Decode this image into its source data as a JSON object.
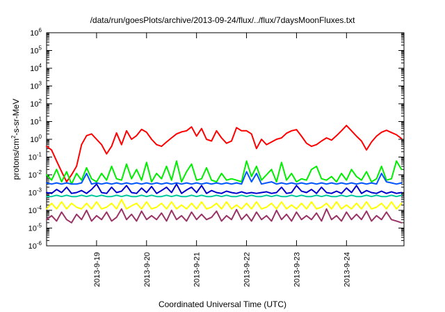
{
  "chart_data": {
    "type": "line",
    "title": "/data/run/goesPlots/archive/2013-09-24/flux/../flux/7daysMoonFluxes.txt",
    "xlabel": "Coordinated Universal Time (UTC)",
    "ylabel": "protons/cm2-s-sr-MeV",
    "ylabel_parts": {
      "pre": "protons/cm",
      "sup": "2",
      "post": "-s-sr-MeV"
    },
    "yscale": "log",
    "ylim": [
      1e-06,
      1000000.0
    ],
    "y_ticks": [
      {
        "exp": "-6"
      },
      {
        "exp": "-5"
      },
      {
        "exp": "-4"
      },
      {
        "exp": "-3"
      },
      {
        "exp": "-2"
      },
      {
        "exp": "-1"
      },
      {
        "exp": "0"
      },
      {
        "exp": "1"
      },
      {
        "exp": "2"
      },
      {
        "exp": "3"
      },
      {
        "exp": "4"
      },
      {
        "exp": "5"
      },
      {
        "exp": "6"
      }
    ],
    "y_tick_base": "10",
    "xlim_days": [
      0,
      7.15
    ],
    "x_ticks": [
      {
        "label": "2013-9-19",
        "day": 1.0
      },
      {
        "label": "2013-9-20",
        "day": 2.0
      },
      {
        "label": "2013-9-21",
        "day": 3.0
      },
      {
        "label": "2013-9-22",
        "day": 4.0
      },
      {
        "label": "2013-9-23",
        "day": 5.0
      },
      {
        "label": "2013-9-24",
        "day": 6.0
      }
    ],
    "grid": false,
    "legend": "none",
    "series": [
      {
        "color": "#ff0000",
        "x": [
          0,
          0.1,
          0.2,
          0.3,
          0.4,
          0.5,
          0.6,
          0.7,
          0.8,
          0.9,
          1,
          1.1,
          1.2,
          1.3,
          1.4,
          1.5,
          1.6,
          1.7,
          1.8,
          1.9,
          2,
          2.1,
          2.2,
          2.3,
          2.4,
          2.5,
          2.6,
          2.7,
          2.8,
          2.9,
          3,
          3.1,
          3.2,
          3.3,
          3.4,
          3.5,
          3.6,
          3.7,
          3.8,
          3.9,
          4,
          4.1,
          4.2,
          4.3,
          4.4,
          4.5,
          4.6,
          4.7,
          4.8,
          4.9,
          5,
          5.1,
          5.2,
          5.3,
          5.4,
          5.5,
          5.6,
          5.7,
          5.8,
          5.9,
          6,
          6.1,
          6.2,
          6.3,
          6.4,
          6.5,
          6.6,
          6.7,
          6.8,
          6.9,
          7,
          7.1
        ],
        "values": [
          0.4,
          0.25,
          0.06,
          0.015,
          0.004,
          0.01,
          0.03,
          0.5,
          1.6,
          2,
          1,
          0.5,
          0.15,
          0.4,
          2.3,
          0.5,
          3,
          1,
          1.6,
          3.6,
          2.5,
          1,
          0.5,
          0.4,
          0.7,
          1.2,
          2,
          2.6,
          3,
          5,
          1.5,
          4,
          1,
          0.8,
          3,
          1.2,
          0.6,
          0.8,
          4.5,
          3,
          3,
          2,
          0.3,
          1,
          0.5,
          0.7,
          1,
          1.2,
          2.2,
          3,
          3.5,
          1.5,
          0.6,
          0.4,
          0.5,
          0.8,
          1.2,
          0.9,
          1.6,
          3,
          6,
          3,
          1.5,
          0.8,
          0.25,
          0.7,
          1.5,
          2.5,
          3.2,
          2.4,
          1.8,
          1.1
        ]
      },
      {
        "color": "#00ee00",
        "x": [
          0,
          0.1,
          0.2,
          0.3,
          0.4,
          0.5,
          0.6,
          0.7,
          0.8,
          0.9,
          1,
          1.1,
          1.2,
          1.3,
          1.4,
          1.5,
          1.6,
          1.7,
          1.8,
          1.9,
          2,
          2.1,
          2.2,
          2.3,
          2.4,
          2.5,
          2.6,
          2.7,
          2.8,
          2.9,
          3,
          3.1,
          3.2,
          3.3,
          3.4,
          3.5,
          3.6,
          3.7,
          3.8,
          3.9,
          4,
          4.1,
          4.2,
          4.3,
          4.4,
          4.5,
          4.6,
          4.7,
          4.8,
          4.9,
          5,
          5.1,
          5.2,
          5.3,
          5.4,
          5.5,
          5.6,
          5.7,
          5.8,
          5.9,
          6,
          6.1,
          6.2,
          6.3,
          6.4,
          6.5,
          6.6,
          6.7,
          6.8,
          6.9,
          7,
          7.1
        ],
        "values": [
          0.01,
          0.005,
          0.02,
          0.004,
          0.015,
          0.003,
          0.012,
          0.005,
          0.025,
          0.006,
          0.004,
          0.012,
          0.005,
          0.03,
          0.006,
          0.005,
          0.04,
          0.006,
          0.02,
          0.005,
          0.05,
          0.004,
          0.012,
          0.006,
          0.03,
          0.005,
          0.06,
          0.004,
          0.015,
          0.04,
          0.005,
          0.006,
          0.025,
          0.005,
          0.004,
          0.012,
          0.005,
          0.006,
          0.005,
          0.004,
          0.06,
          0.008,
          0.03,
          0.005,
          0.01,
          0.02,
          0.004,
          0.05,
          0.005,
          0.012,
          0.004,
          0.006,
          0.005,
          0.02,
          0.03,
          0.006,
          0.005,
          0.008,
          0.004,
          0.012,
          0.005,
          0.02,
          0.008,
          0.005,
          0.015,
          0.004,
          0.006,
          0.03,
          0.005,
          0.006,
          0.06,
          0.02
        ]
      },
      {
        "color": "#0055ff",
        "x": [
          0,
          0.1,
          0.2,
          0.3,
          0.4,
          0.5,
          0.6,
          0.7,
          0.8,
          0.9,
          1,
          1.1,
          1.2,
          1.3,
          1.4,
          1.5,
          1.6,
          1.7,
          1.8,
          1.9,
          2,
          2.1,
          2.2,
          2.3,
          2.4,
          2.5,
          2.6,
          2.7,
          2.8,
          2.9,
          3,
          3.1,
          3.2,
          3.3,
          3.4,
          3.5,
          3.6,
          3.7,
          3.8,
          3.9,
          4,
          4.1,
          4.2,
          4.3,
          4.4,
          4.5,
          4.6,
          4.7,
          4.8,
          4.9,
          5,
          5.1,
          5.2,
          5.3,
          5.4,
          5.5,
          5.6,
          5.7,
          5.8,
          5.9,
          6,
          6.1,
          6.2,
          6.3,
          6.4,
          6.5,
          6.6,
          6.7,
          6.8,
          6.9,
          7,
          7.1
        ],
        "values": [
          0.0035,
          0.003,
          0.0035,
          0.003,
          0.0035,
          0.003,
          0.003,
          0.0035,
          0.012,
          0.003,
          0.0035,
          0.003,
          0.0035,
          0.003,
          0.0035,
          0.003,
          0.0035,
          0.003,
          0.0035,
          0.003,
          0.0035,
          0.003,
          0.0035,
          0.003,
          0.0035,
          0.003,
          0.0035,
          0.003,
          0.0035,
          0.003,
          0.0035,
          0.003,
          0.0035,
          0.003,
          0.0035,
          0.003,
          0.0035,
          0.003,
          0.0035,
          0.003,
          0.015,
          0.004,
          0.012,
          0.003,
          0.0035,
          0.004,
          0.003,
          0.0035,
          0.003,
          0.0035,
          0.003,
          0.0035,
          0.003,
          0.0035,
          0.003,
          0.0035,
          0.003,
          0.0035,
          0.003,
          0.0035,
          0.003,
          0.0035,
          0.003,
          0.0035,
          0.003,
          0.0035,
          0.003,
          0.012,
          0.004,
          0.0035,
          0.003,
          0.0035
        ]
      },
      {
        "color": "#0000cc",
        "x": [
          0,
          0.1,
          0.2,
          0.3,
          0.4,
          0.5,
          0.6,
          0.7,
          0.8,
          0.9,
          1,
          1.1,
          1.2,
          1.3,
          1.4,
          1.5,
          1.6,
          1.7,
          1.8,
          1.9,
          2,
          2.1,
          2.2,
          2.3,
          2.4,
          2.5,
          2.6,
          2.7,
          2.8,
          2.9,
          3,
          3.1,
          3.2,
          3.3,
          3.4,
          3.5,
          3.6,
          3.7,
          3.8,
          3.9,
          4,
          4.1,
          4.2,
          4.3,
          4.4,
          4.5,
          4.6,
          4.7,
          4.8,
          4.9,
          5,
          5.1,
          5.2,
          5.3,
          5.4,
          5.5,
          5.6,
          5.7,
          5.8,
          5.9,
          6,
          6.1,
          6.2,
          6.3,
          6.4,
          6.5,
          6.6,
          6.7,
          6.8,
          6.9,
          7,
          7.1
        ],
        "values": [
          0.001,
          0.0009,
          0.0015,
          0.001,
          0.002,
          0.0009,
          0.001,
          0.0013,
          0.0009,
          0.0015,
          0.003,
          0.001,
          0.0009,
          0.002,
          0.001,
          0.0012,
          0.0025,
          0.001,
          0.0009,
          0.0018,
          0.001,
          0.0022,
          0.0009,
          0.0013,
          0.002,
          0.001,
          0.003,
          0.0009,
          0.0014,
          0.002,
          0.001,
          0.0025,
          0.0009,
          0.0013,
          0.001,
          0.0009,
          0.0012,
          0.001,
          0.0009,
          0.0011,
          0.0009,
          0.001,
          0.0009,
          0.001,
          0.0011,
          0.0009,
          0.001,
          0.002,
          0.0009,
          0.001,
          0.0025,
          0.0012,
          0.001,
          0.0015,
          0.0009,
          0.002,
          0.001,
          0.0009,
          0.0012,
          0.0009,
          0.0018,
          0.001,
          0.0025,
          0.0009,
          0.0013,
          0.001,
          0.0009,
          0.0012,
          0.0009,
          0.0011,
          0.0009,
          0.001
        ]
      },
      {
        "color": "#00c8a0",
        "x": [
          0,
          0.1,
          0.2,
          0.3,
          0.4,
          0.5,
          0.6,
          0.7,
          0.8,
          0.9,
          1,
          1.1,
          1.2,
          1.3,
          1.4,
          1.5,
          1.6,
          1.7,
          1.8,
          1.9,
          2,
          2.1,
          2.2,
          2.3,
          2.4,
          2.5,
          2.6,
          2.7,
          2.8,
          2.9,
          3,
          3.1,
          3.2,
          3.3,
          3.4,
          3.5,
          3.6,
          3.7,
          3.8,
          3.9,
          4,
          4.1,
          4.2,
          4.3,
          4.4,
          4.5,
          4.6,
          4.7,
          4.8,
          4.9,
          5,
          5.1,
          5.2,
          5.3,
          5.4,
          5.5,
          5.6,
          5.7,
          5.8,
          5.9,
          6,
          6.1,
          6.2,
          6.3,
          6.4,
          6.5,
          6.6,
          6.7,
          6.8,
          6.9,
          7,
          7.1
        ],
        "values": [
          0.0006,
          0.0006,
          0.0007,
          0.0006,
          0.0007,
          0.0006,
          0.0006,
          0.0007,
          0.0006,
          0.0007,
          0.0006,
          0.0007,
          0.0006,
          0.0006,
          0.0007,
          0.0006,
          0.0007,
          0.0006,
          0.0006,
          0.0007,
          0.0006,
          0.0007,
          0.0006,
          0.0006,
          0.0007,
          0.0006,
          0.0007,
          0.0006,
          0.0006,
          0.0007,
          0.0006,
          0.0007,
          0.0006,
          0.0006,
          0.0007,
          0.0006,
          0.0007,
          0.0006,
          0.0006,
          0.0007,
          0.0006,
          0.0007,
          0.0006,
          0.0006,
          0.0007,
          0.0006,
          0.0007,
          0.0006,
          0.0006,
          0.0007,
          0.0006,
          0.0007,
          0.0006,
          0.0006,
          0.0007,
          0.0006,
          0.0007,
          0.0006,
          0.0006,
          0.0007,
          0.0006,
          0.0007,
          0.0006,
          0.0006,
          0.0007,
          0.0006,
          0.0007,
          0.0006,
          0.0006,
          0.0007,
          0.0006,
          0.0007
        ]
      },
      {
        "color": "#ffff00",
        "x": [
          0,
          0.1,
          0.2,
          0.3,
          0.4,
          0.5,
          0.6,
          0.7,
          0.8,
          0.9,
          1,
          1.1,
          1.2,
          1.3,
          1.4,
          1.5,
          1.6,
          1.7,
          1.8,
          1.9,
          2,
          2.1,
          2.2,
          2.3,
          2.4,
          2.5,
          2.6,
          2.7,
          2.8,
          2.9,
          3,
          3.1,
          3.2,
          3.3,
          3.4,
          3.5,
          3.6,
          3.7,
          3.8,
          3.9,
          4,
          4.1,
          4.2,
          4.3,
          4.4,
          4.5,
          4.6,
          4.7,
          4.8,
          4.9,
          5,
          5.1,
          5.2,
          5.3,
          5.4,
          5.5,
          5.6,
          5.7,
          5.8,
          5.9,
          6,
          6.1,
          6.2,
          6.3,
          6.4,
          6.5,
          6.6,
          6.7,
          6.8,
          6.9,
          7,
          7.1
        ],
        "values": [
          0.00012,
          0.00025,
          0.00012,
          0.0003,
          0.00012,
          0.00025,
          0.00015,
          0.00012,
          0.00025,
          0.00012,
          0.0003,
          0.00012,
          0.00015,
          0.00025,
          0.00012,
          0.0004,
          0.00012,
          0.00018,
          0.00025,
          0.00012,
          0.0003,
          0.00012,
          0.00015,
          0.00025,
          0.00012,
          0.0003,
          0.00012,
          0.0002,
          0.00012,
          0.00025,
          0.00012,
          0.0003,
          0.00012,
          0.00015,
          0.00025,
          0.00012,
          0.0003,
          0.00012,
          0.0002,
          0.00012,
          0.00025,
          0.00012,
          0.0003,
          0.00012,
          0.00015,
          0.00025,
          0.00012,
          0.0003,
          0.00012,
          0.0002,
          0.00012,
          0.00025,
          0.00012,
          0.0003,
          0.00012,
          0.00015,
          0.00025,
          0.00012,
          0.0003,
          0.00012,
          0.0002,
          0.00012,
          0.00025,
          0.00012,
          0.0003,
          0.00012,
          0.00015,
          0.00025,
          0.00012,
          0.0003,
          0.00012,
          0.00025
        ]
      },
      {
        "color": "#993366",
        "x": [
          0,
          0.1,
          0.2,
          0.3,
          0.4,
          0.5,
          0.6,
          0.7,
          0.8,
          0.9,
          1,
          1.1,
          1.2,
          1.3,
          1.4,
          1.5,
          1.6,
          1.7,
          1.8,
          1.9,
          2,
          2.1,
          2.2,
          2.3,
          2.4,
          2.5,
          2.6,
          2.7,
          2.8,
          2.9,
          3,
          3.1,
          3.2,
          3.3,
          3.4,
          3.5,
          3.6,
          3.7,
          3.8,
          3.9,
          4,
          4.1,
          4.2,
          4.3,
          4.4,
          4.5,
          4.6,
          4.7,
          4.8,
          4.9,
          5,
          5.1,
          5.2,
          5.3,
          5.4,
          5.5,
          5.6,
          5.7,
          5.8,
          5.9,
          6,
          6.1,
          6.2,
          6.3,
          6.4,
          6.5,
          6.6,
          6.7,
          6.8,
          6.9,
          7,
          7.1
        ],
        "values": [
          3e-05,
          5e-05,
          2.5e-05,
          8e-05,
          3e-05,
          2e-05,
          6e-05,
          3e-05,
          0.0001,
          2.5e-05,
          5e-05,
          3e-05,
          8e-05,
          2.5e-05,
          4e-05,
          0.00012,
          3e-05,
          6e-05,
          2.5e-05,
          9e-05,
          3e-05,
          5e-05,
          3e-05,
          7e-05,
          2.5e-05,
          0.0001,
          3e-05,
          5e-05,
          2.5e-05,
          8e-05,
          3e-05,
          6e-05,
          3e-05,
          4e-05,
          9e-05,
          2.5e-05,
          5e-05,
          3e-05,
          0.00011,
          3e-05,
          6e-05,
          2.5e-05,
          8e-05,
          3e-05,
          5e-05,
          2.5e-05,
          0.0001,
          3e-05,
          6e-05,
          2.5e-05,
          8e-05,
          3e-05,
          5e-05,
          3e-05,
          7e-05,
          2.5e-05,
          0.00012,
          3e-05,
          5e-05,
          2.5e-05,
          8e-05,
          3e-05,
          6e-05,
          3e-05,
          9e-05,
          2.5e-05,
          5e-05,
          3e-05,
          8e-05,
          3e-05,
          2.5e-05,
          2e-05
        ]
      }
    ]
  }
}
